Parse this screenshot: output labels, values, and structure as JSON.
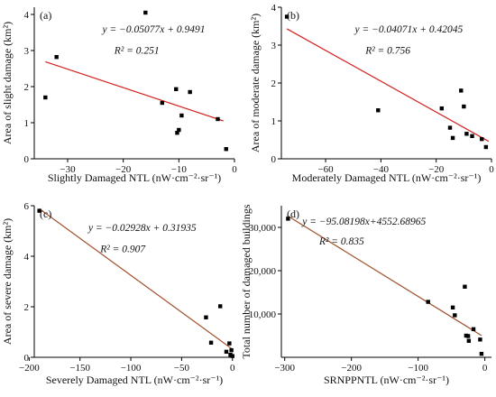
{
  "figure": {
    "background": "#ffffff",
    "line_color": "#d42020",
    "brown_color": "#a0522d",
    "marker_color": "#000000"
  },
  "chart_data": [
    {
      "type": "scatter",
      "panel_label": "(a)",
      "xlabel": "Slightly Damaged NTL (nW·cm⁻²·sr⁻¹)",
      "ylabel": "Area of slight damage (km²)",
      "xlim": [
        -36,
        0
      ],
      "ylim": [
        0,
        4.2
      ],
      "xticks": [
        -30,
        -20,
        -10,
        0
      ],
      "xtick_labels": [
        "−30",
        "−20",
        "−10",
        "0"
      ],
      "yticks": [
        0,
        1,
        2,
        3,
        4
      ],
      "ytick_labels": [
        "0",
        "1",
        "2",
        "3",
        "4"
      ],
      "points": [
        {
          "x": -34,
          "y": 1.7
        },
        {
          "x": -32,
          "y": 2.82
        },
        {
          "x": -16,
          "y": 4.05
        },
        {
          "x": -13,
          "y": 1.55
        },
        {
          "x": -10.5,
          "y": 1.93
        },
        {
          "x": -10,
          "y": 0.8
        },
        {
          "x": -10.3,
          "y": 0.72
        },
        {
          "x": -9.5,
          "y": 1.2
        },
        {
          "x": -8,
          "y": 1.85
        },
        {
          "x": -3,
          "y": 1.1
        },
        {
          "x": -1.5,
          "y": 0.27
        }
      ],
      "fit": {
        "x": [
          -34,
          -2
        ],
        "y": [
          2.69,
          1.05
        ],
        "color": "line_color"
      },
      "equation": "y = −0.05077x + 0.9491",
      "r2": "R² = 0.251",
      "grid": false
    },
    {
      "type": "scatter",
      "panel_label": "(b)",
      "xlabel": "Moderately Damaged NTL (nW·cm⁻²·sr⁻¹)",
      "ylabel": "Area of moderate damage (km²)",
      "xlim": [
        -76,
        0
      ],
      "ylim": [
        0,
        4
      ],
      "xticks": [
        -60,
        -40,
        -20,
        0
      ],
      "xtick_labels": [
        "−60",
        "−40",
        "−20",
        "0"
      ],
      "yticks": [
        0,
        1,
        2,
        3,
        4
      ],
      "ytick_labels": [
        "0",
        "1",
        "2",
        "3",
        "4"
      ],
      "points": [
        {
          "x": -74,
          "y": 3.75
        },
        {
          "x": -41,
          "y": 1.28
        },
        {
          "x": -18,
          "y": 1.33
        },
        {
          "x": -15,
          "y": 0.82
        },
        {
          "x": -14,
          "y": 0.55
        },
        {
          "x": -11,
          "y": 1.8
        },
        {
          "x": -10,
          "y": 1.38
        },
        {
          "x": -9,
          "y": 0.66
        },
        {
          "x": -7,
          "y": 0.6
        },
        {
          "x": -3.5,
          "y": 0.52
        },
        {
          "x": -2,
          "y": 0.31
        }
      ],
      "fit": {
        "x": [
          -74,
          -1
        ],
        "y": [
          3.43,
          0.46
        ],
        "color": "line_color"
      },
      "equation": "y = −0.04071x + 0.42045",
      "r2": "R² = 0.756",
      "grid": false
    },
    {
      "type": "scatter",
      "panel_label": "(c)",
      "xlabel": "Severely Damaged NTL (nW·cm⁻²·sr⁻¹)",
      "ylabel": "Area of severe damage (km²)",
      "xlim": [
        -195,
        2
      ],
      "ylim": [
        0,
        6
      ],
      "xticks": [
        -200,
        -150,
        -100,
        -50,
        0
      ],
      "xtick_labels": [
        "−200",
        "−150",
        "−100",
        "−50",
        "0"
      ],
      "yticks": [
        0,
        2,
        4,
        6
      ],
      "ytick_labels": [
        "0",
        "2",
        "4",
        "6"
      ],
      "points": [
        {
          "x": -190,
          "y": 5.8
        },
        {
          "x": -26,
          "y": 1.58
        },
        {
          "x": -21,
          "y": 0.58
        },
        {
          "x": -12,
          "y": 2.02
        },
        {
          "x": -6,
          "y": 0.22
        },
        {
          "x": -3,
          "y": 0.55
        },
        {
          "x": -2,
          "y": 0.1
        },
        {
          "x": -1,
          "y": 0.28
        },
        {
          "x": 0,
          "y": 0.05
        }
      ],
      "fit": {
        "x": [
          -190,
          0
        ],
        "y": [
          5.88,
          0.32
        ],
        "color": "brown_color"
      },
      "equation": "y = −0.02928x + 0.31935",
      "r2": "R² = 0.907",
      "grid": false
    },
    {
      "type": "scatter",
      "panel_label": "(d)",
      "xlabel": "SRNPPNTL (nW·cm⁻²·sr⁻¹)",
      "ylabel": "Total number of damaged buildings",
      "xlim": [
        -305,
        10
      ],
      "ylim": [
        0,
        35000
      ],
      "xticks": [
        -300,
        -200,
        -100,
        0
      ],
      "xtick_labels": [
        "−300",
        "−200",
        "−100",
        "0"
      ],
      "yticks": [
        10000,
        20000,
        30000
      ],
      "ytick_labels": [
        "10,000",
        "20,000",
        "30,000"
      ],
      "points": [
        {
          "x": -295,
          "y": 32000
        },
        {
          "x": -85,
          "y": 12800
        },
        {
          "x": -48,
          "y": 11500
        },
        {
          "x": -45,
          "y": 9700
        },
        {
          "x": -30,
          "y": 16300
        },
        {
          "x": -28,
          "y": 5000
        },
        {
          "x": -25,
          "y": 4900
        },
        {
          "x": -24,
          "y": 3800
        },
        {
          "x": -17,
          "y": 6500
        },
        {
          "x": -7,
          "y": 4100
        },
        {
          "x": -5,
          "y": 800
        }
      ],
      "fit": {
        "x": [
          -295,
          -5
        ],
        "y": [
          32602,
          5028
        ],
        "color": "brown_color"
      },
      "equation": "y = −95.08198x+4552.68965",
      "r2": "R² = 0.835",
      "grid": false
    }
  ]
}
